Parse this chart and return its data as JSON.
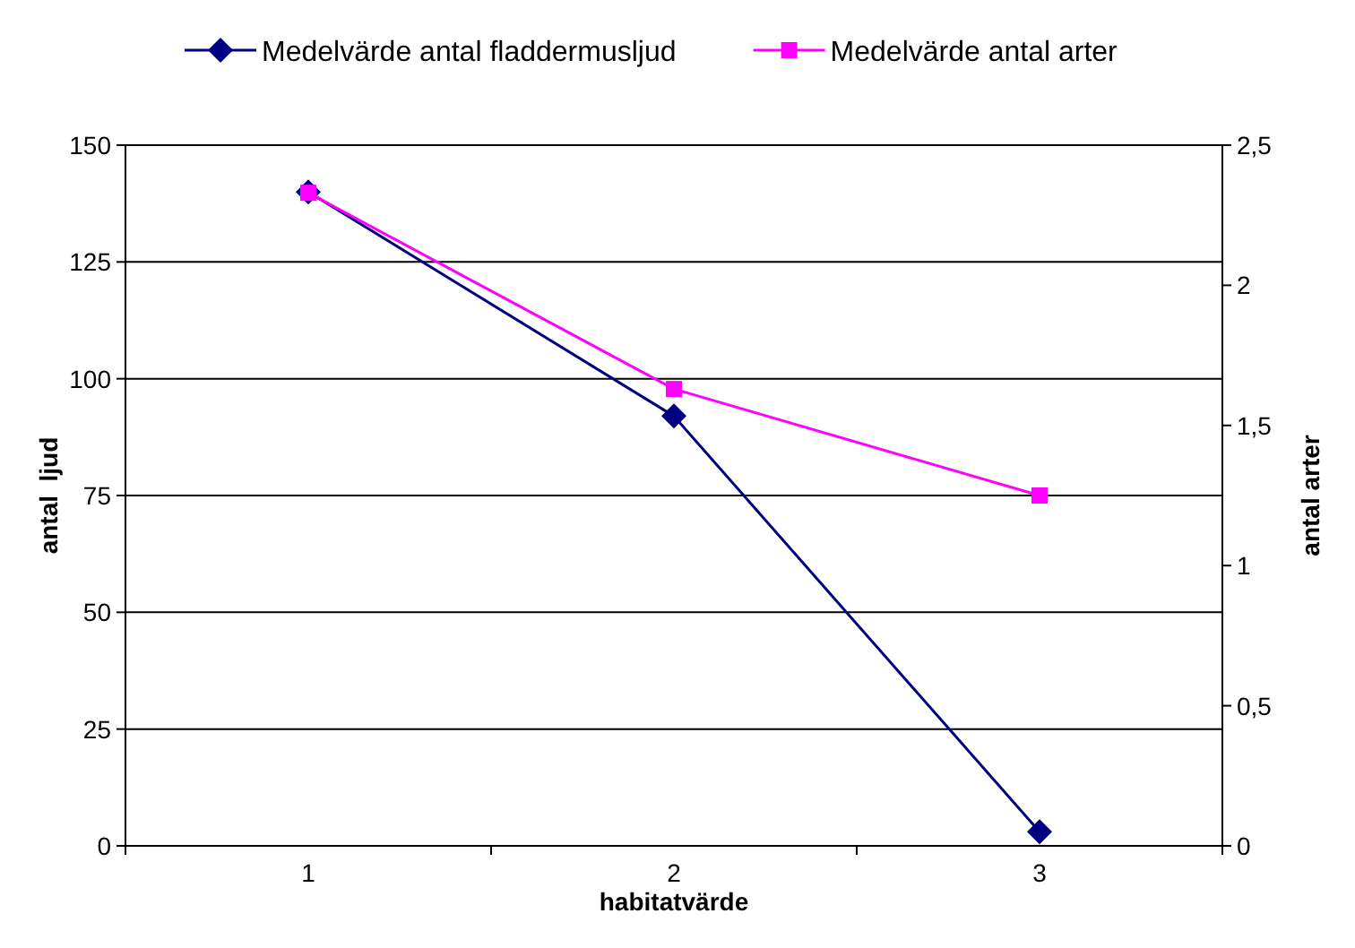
{
  "chart_data": {
    "type": "line",
    "categories": [
      "1",
      "2",
      "3"
    ],
    "xlabel": "habitatvärde",
    "ylabel": "antal  ljud",
    "y2label": "antal arter",
    "ylim": [
      0,
      150
    ],
    "yticks": [
      0,
      25,
      50,
      75,
      100,
      125,
      150
    ],
    "y2lim": [
      0,
      2.5
    ],
    "y2ticks": [
      {
        "value": 0,
        "label": "0"
      },
      {
        "value": 0.5,
        "label": "0,5"
      },
      {
        "value": 1,
        "label": "1"
      },
      {
        "value": 1.5,
        "label": "1,5"
      },
      {
        "value": 2,
        "label": "2"
      },
      {
        "value": 2.5,
        "label": "2,5"
      }
    ],
    "grid": "y",
    "legend": "top",
    "series": [
      {
        "name": "Medelvärde antal fladdermusljud",
        "color": "#000080",
        "values": [
          140,
          92,
          3
        ],
        "marker": "diamond"
      },
      {
        "name": "Medelvärde antal arter",
        "color": "#ff00ff",
        "values": [
          2.33,
          1.63,
          1.25
        ],
        "marker": "square",
        "axis": "y2"
      }
    ]
  }
}
